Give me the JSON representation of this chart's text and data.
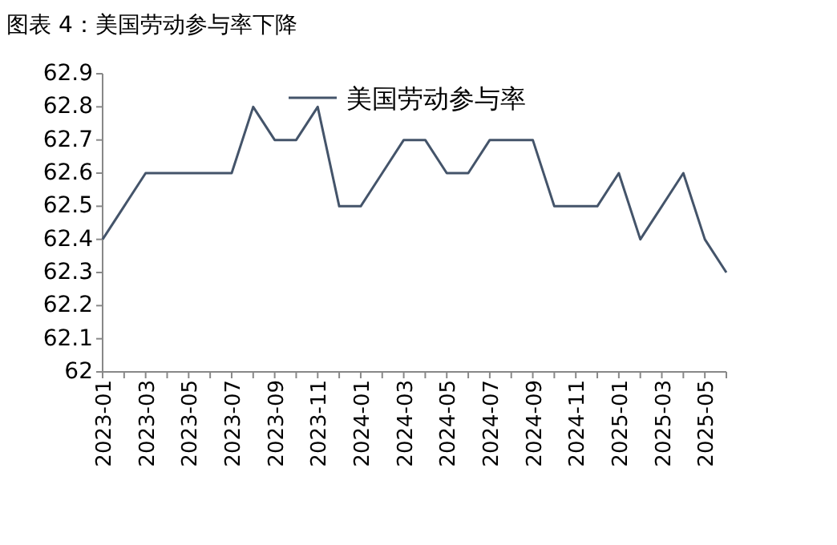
{
  "chart_data": {
    "type": "line",
    "title": "图表 4：美国劳动参与率下降",
    "x": [
      "2023-01",
      "2023-02",
      "2023-03",
      "2023-04",
      "2023-05",
      "2023-06",
      "2023-07",
      "2023-08",
      "2023-09",
      "2023-10",
      "2023-11",
      "2023-12",
      "2024-01",
      "2024-02",
      "2024-03",
      "2024-04",
      "2024-05",
      "2024-06",
      "2024-07",
      "2024-08",
      "2024-09",
      "2024-10",
      "2024-11",
      "2024-12",
      "2025-01",
      "2025-02",
      "2025-03",
      "2025-04",
      "2025-05",
      "2025-06"
    ],
    "series": [
      {
        "name": "美国劳动参与率",
        "color": "#44546a",
        "values": [
          62.4,
          62.5,
          62.6,
          62.6,
          62.6,
          62.6,
          62.6,
          62.8,
          62.7,
          62.7,
          62.8,
          62.5,
          62.5,
          62.6,
          62.7,
          62.7,
          62.6,
          62.6,
          62.7,
          62.7,
          62.7,
          62.5,
          62.5,
          62.5,
          62.6,
          62.4,
          62.5,
          62.6,
          62.4,
          62.3
        ]
      }
    ],
    "xlim": [
      "2023-01",
      "2025-06"
    ],
    "xticks": [
      "2023-01",
      "2023-03",
      "2023-05",
      "2023-07",
      "2023-09",
      "2023-11",
      "2024-01",
      "2024-03",
      "2024-05",
      "2024-07",
      "2024-09",
      "2024-11",
      "2025-01",
      "2025-03",
      "2025-05"
    ],
    "ylim": [
      62,
      62.9
    ],
    "yticks": [
      62,
      62.1,
      62.2,
      62.3,
      62.4,
      62.5,
      62.6,
      62.7,
      62.8,
      62.9
    ],
    "legend": "top",
    "grid": false,
    "marker": "none",
    "line_style": "solid"
  }
}
